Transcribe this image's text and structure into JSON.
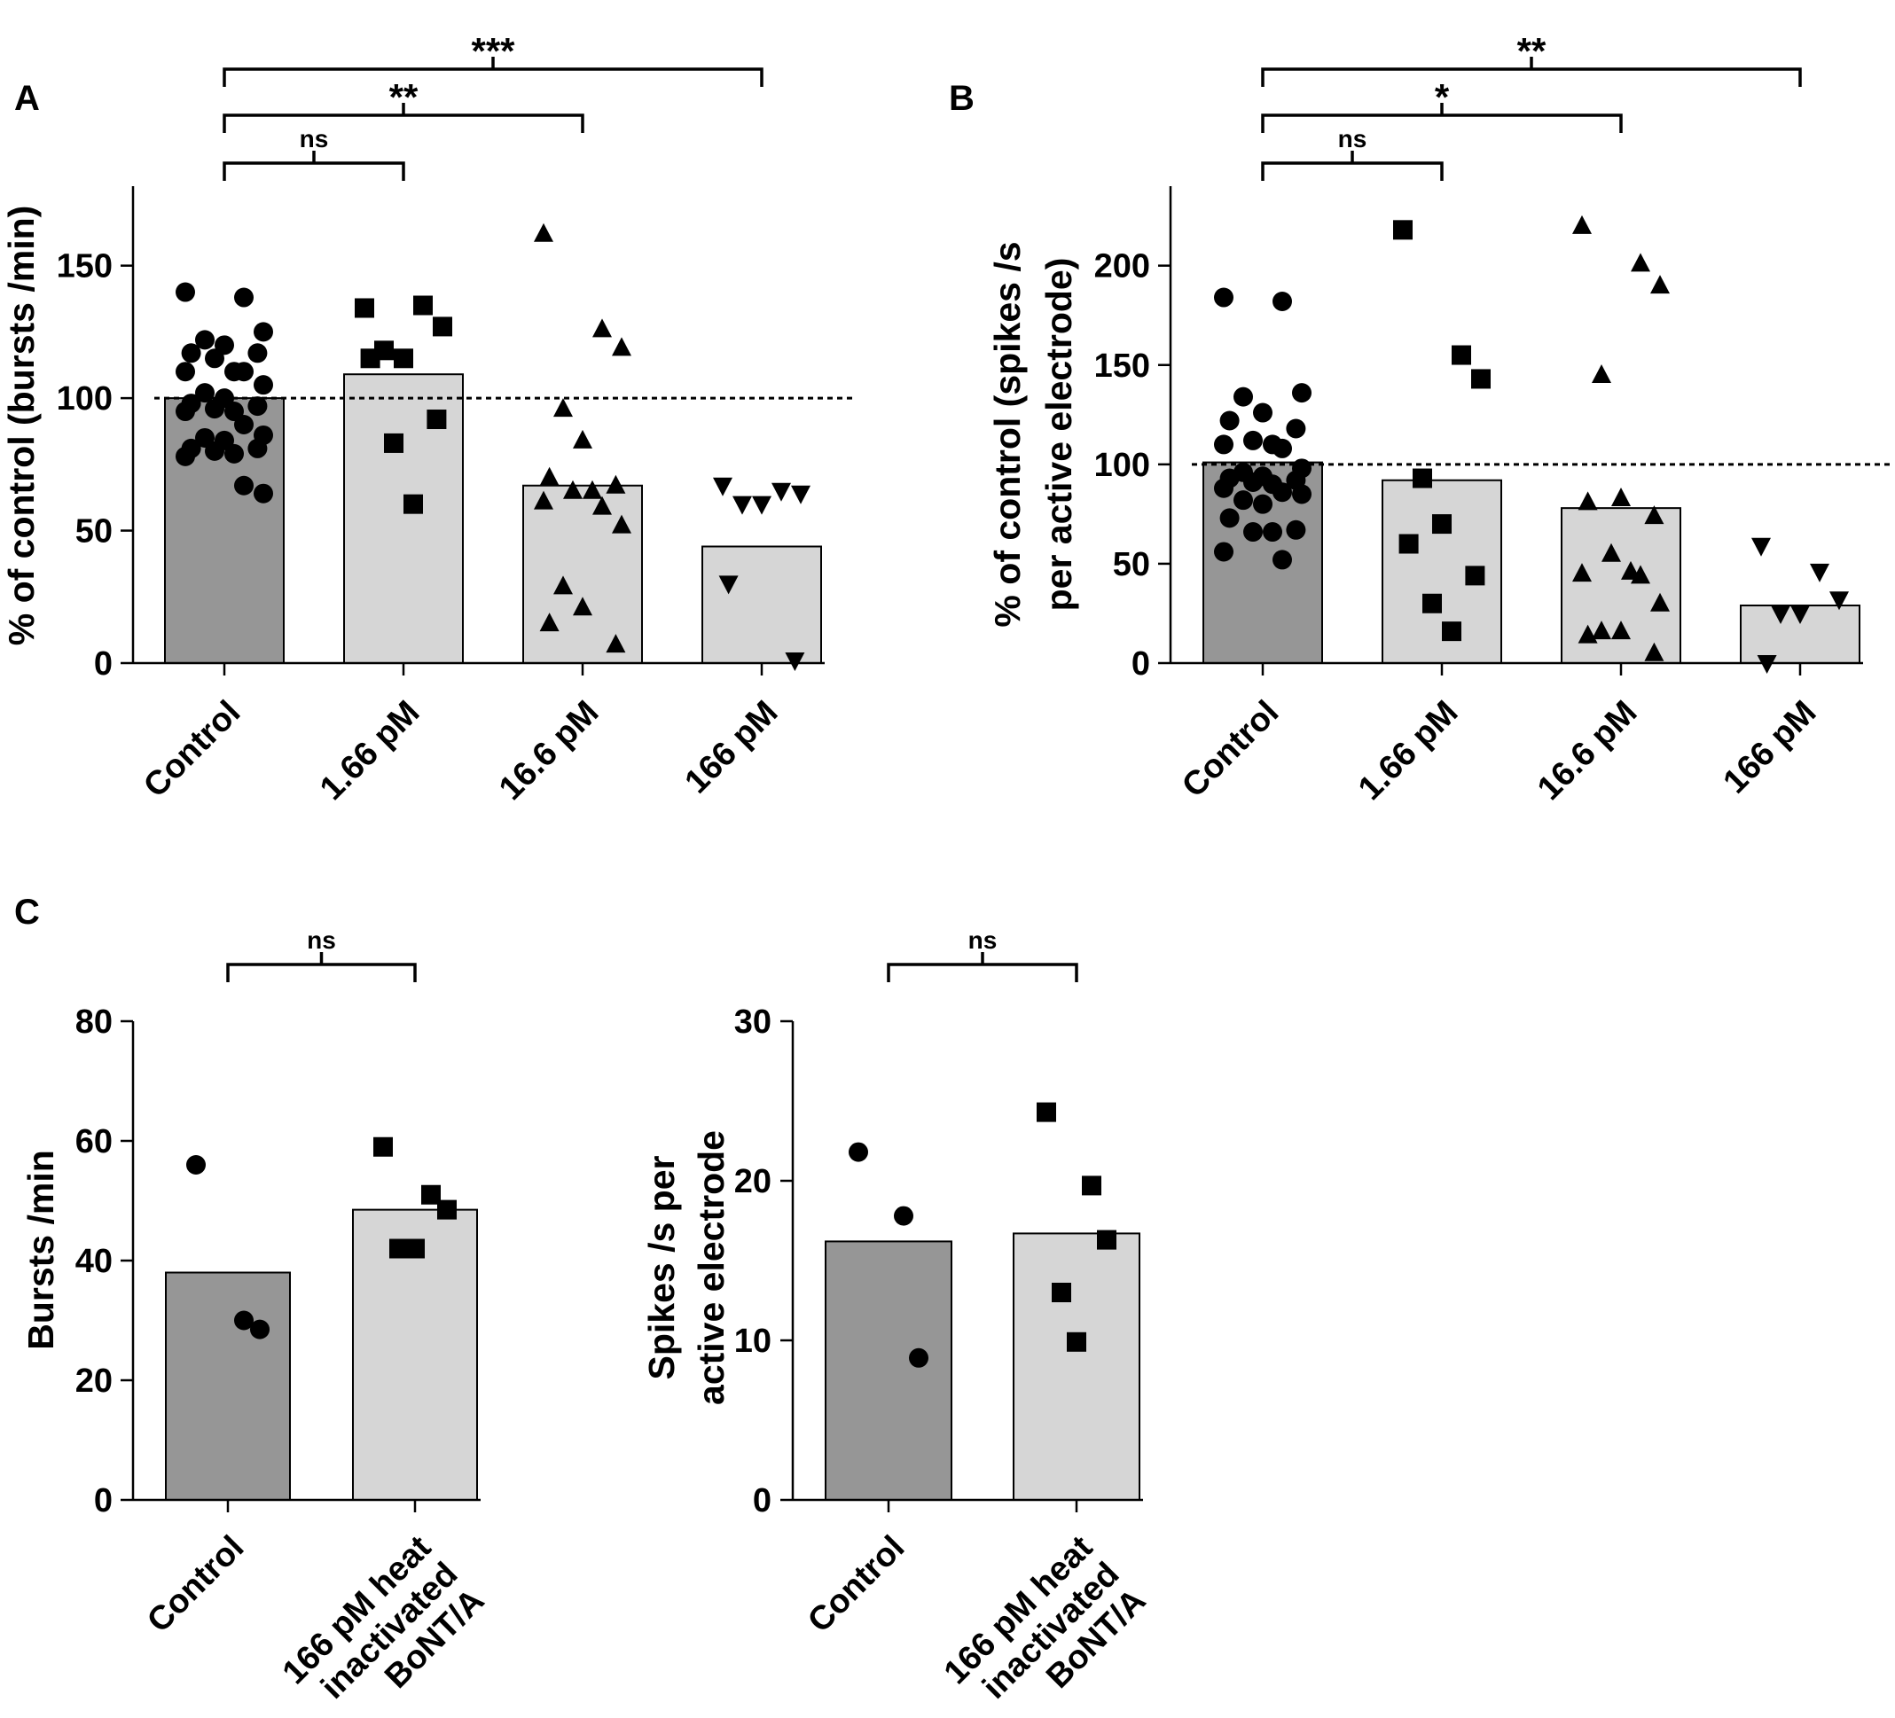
{
  "chart_data": [
    {
      "panel": "A",
      "type": "bar",
      "ylabel": "% of control (bursts /min)",
      "ylim": [
        0,
        180
      ],
      "yticks": [
        0,
        50,
        100,
        150
      ],
      "reference_line": 100,
      "categories": [
        "Control",
        "1.66 pM",
        "16.6 pM",
        "166 pM"
      ],
      "values": [
        100,
        109,
        67,
        44
      ],
      "bar_colors": [
        "#969696",
        "#d6d6d6",
        "#d6d6d6",
        "#d6d6d6"
      ],
      "markers": [
        "circle",
        "square",
        "triangle-up",
        "triangle-down"
      ],
      "points": [
        [
          140,
          138,
          125,
          122,
          120,
          117,
          117,
          115,
          110,
          110,
          110,
          105,
          102,
          100,
          98,
          97,
          96,
          95,
          95,
          90,
          86,
          85,
          84,
          81,
          81,
          80,
          79,
          78,
          67,
          64
        ],
        [
          134,
          135,
          127,
          118,
          115,
          115,
          92,
          83,
          60
        ],
        [
          162,
          126,
          119,
          96,
          84,
          70,
          67,
          65,
          65,
          61,
          59,
          52,
          29,
          21,
          15,
          7
        ],
        [
          67,
          65,
          64,
          60,
          60,
          30,
          1
        ]
      ],
      "comparisons": [
        {
          "from": 0,
          "to": 1,
          "label": "ns"
        },
        {
          "from": 0,
          "to": 2,
          "label": "**"
        },
        {
          "from": 0,
          "to": 3,
          "label": "***"
        }
      ]
    },
    {
      "panel": "B",
      "type": "bar",
      "ylabel_lines": [
        "% of control (spikes /s",
        "per active electrode)"
      ],
      "ylim": [
        0,
        240
      ],
      "yticks": [
        0,
        50,
        100,
        150,
        200
      ],
      "reference_line": 100,
      "categories": [
        "Control",
        "1.66 pM",
        "16.6 pM",
        "166 pM"
      ],
      "values": [
        101,
        92,
        78,
        29
      ],
      "bar_colors": [
        "#969696",
        "#d6d6d6",
        "#d6d6d6",
        "#d6d6d6"
      ],
      "markers": [
        "circle",
        "square",
        "triangle-up",
        "triangle-down"
      ],
      "points": [
        [
          184,
          182,
          136,
          134,
          126,
          122,
          118,
          112,
          110,
          110,
          108,
          98,
          96,
          94,
          93,
          92,
          91,
          90,
          88,
          86,
          85,
          82,
          80,
          73,
          67,
          66,
          66,
          56,
          52
        ],
        [
          218,
          155,
          143,
          93,
          70,
          60,
          44,
          30,
          16
        ],
        [
          220,
          201,
          190,
          145,
          83,
          81,
          74,
          55,
          46,
          45,
          44,
          30,
          16,
          16,
          14,
          5
        ],
        [
          59,
          46,
          32,
          25,
          25,
          0
        ]
      ],
      "comparisons": [
        {
          "from": 0,
          "to": 1,
          "label": "ns"
        },
        {
          "from": 0,
          "to": 2,
          "label": "*"
        },
        {
          "from": 0,
          "to": 3,
          "label": "**"
        }
      ]
    },
    {
      "panel": "C",
      "type": "bar",
      "ylabel": "Bursts /min",
      "ylim": [
        0,
        80
      ],
      "yticks": [
        0,
        20,
        40,
        60,
        80
      ],
      "categories": [
        "Control",
        "166 pM heat inactivated BoNT/A"
      ],
      "values": [
        38,
        48.5
      ],
      "bar_colors": [
        "#969696",
        "#d6d6d6"
      ],
      "markers": [
        "circle",
        "square"
      ],
      "points": [
        [
          56,
          30,
          28.5
        ],
        [
          59,
          51,
          48.5,
          42,
          42
        ]
      ],
      "comparisons": [
        {
          "from": 0,
          "to": 1,
          "label": "ns"
        }
      ]
    },
    {
      "panel": "",
      "type": "bar",
      "ylabel_lines": [
        "Spikes /s per",
        "active electrode"
      ],
      "ylim": [
        0,
        30
      ],
      "yticks": [
        0,
        10,
        20,
        30
      ],
      "categories": [
        "Control",
        "166 pM heat inactivated BoNT/A"
      ],
      "values": [
        16.2,
        16.7
      ],
      "bar_colors": [
        "#969696",
        "#d6d6d6"
      ],
      "markers": [
        "circle",
        "square"
      ],
      "points": [
        [
          21.8,
          17.8,
          8.9
        ],
        [
          24.3,
          19.7,
          16.3,
          13,
          9.9
        ]
      ],
      "comparisons": [
        {
          "from": 0,
          "to": 1,
          "label": "ns"
        }
      ]
    }
  ],
  "panel_labels": {
    "a": "A",
    "b": "B",
    "c": "C"
  },
  "category_label_lines": {
    "control": "Control",
    "pm166": "166 pM heat",
    "inactivated": "inactivated",
    "bont": "BoNT/A"
  }
}
